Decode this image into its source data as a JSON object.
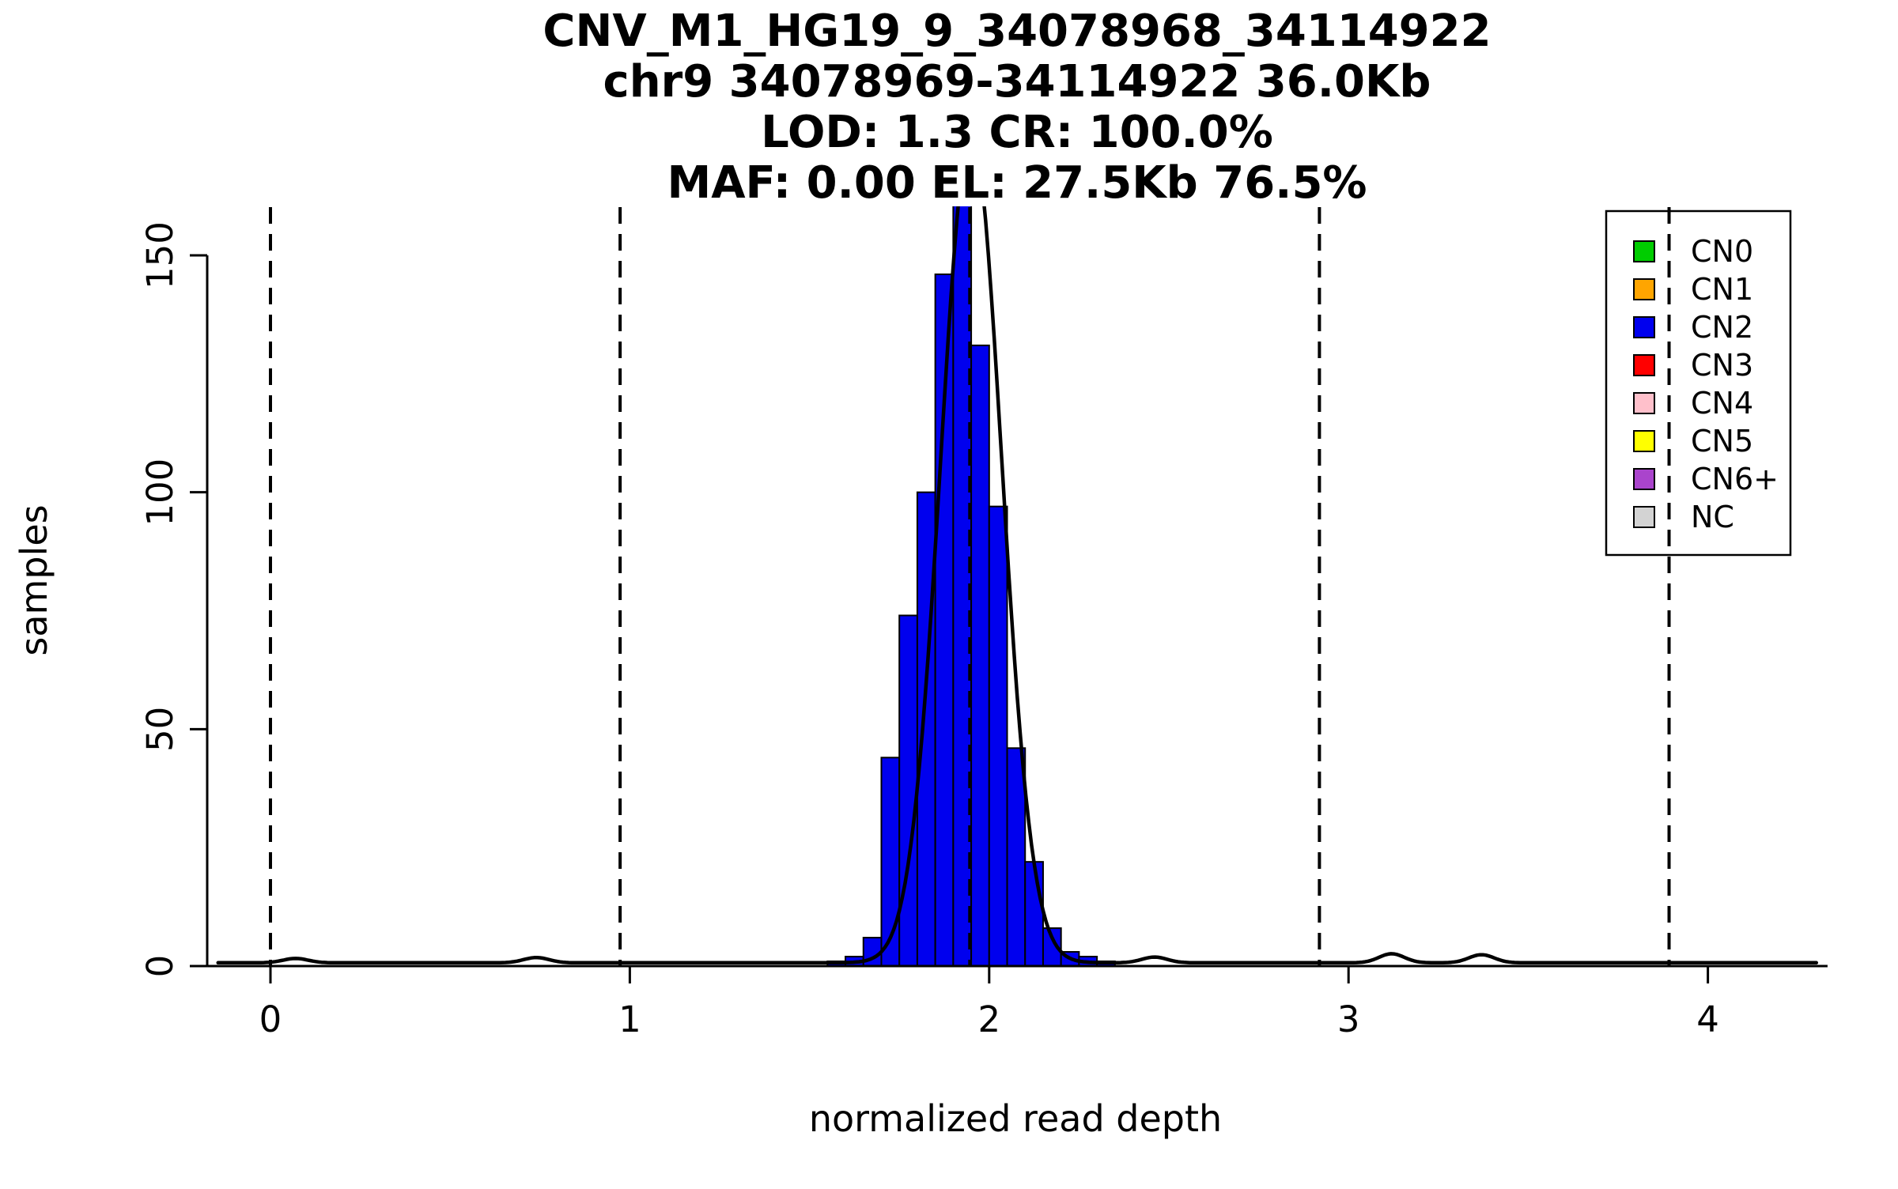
{
  "chart_data": {
    "type": "bar",
    "subtype": "histogram",
    "title_lines": [
      "CNV_M1_HG19_9_34078968_34114922",
      "chr9 34078969-34114922 36.0Kb",
      "LOD: 1.3 CR: 100.0%",
      "MAF: 0.00 EL: 27.5Kb 76.5%"
    ],
    "xlabel": "normalized read depth",
    "ylabel": "samples",
    "xlim": [
      -0.176,
      4.333
    ],
    "ylim": [
      0,
      160
    ],
    "x_ticks": [
      0,
      1,
      2,
      3,
      4
    ],
    "y_ticks": [
      0,
      50,
      100,
      150
    ],
    "grid": false,
    "legend_position": "top-right",
    "histogram": {
      "bin_start": 1.55,
      "bin_width": 0.05,
      "counts": [
        1,
        2,
        6,
        44,
        74,
        100,
        146,
        164,
        131,
        97,
        46,
        22,
        8,
        3,
        2,
        1
      ],
      "fill": "#0000EE",
      "stroke": "#000000"
    },
    "density_curve": {
      "color": "#000000",
      "mean": 1.95,
      "sd": 0.085,
      "peak": 175,
      "baseline": 0.7,
      "bumps": [
        {
          "x": 0.07,
          "h": 0.9
        },
        {
          "x": 0.74,
          "h": 1.1
        },
        {
          "x": 2.46,
          "h": 1.2
        },
        {
          "x": 3.12,
          "h": 1.9
        },
        {
          "x": 3.37,
          "h": 1.7
        }
      ]
    },
    "dashed_lines_x": [
      0.0,
      0.973,
      1.946,
      2.919,
      3.892
    ],
    "dashed_line_color": "#000000",
    "legend": {
      "items": [
        {
          "label": "CN0",
          "color": "#00CD00"
        },
        {
          "label": "CN1",
          "color": "#FFA500"
        },
        {
          "label": "CN2",
          "color": "#0000EE"
        },
        {
          "label": "CN3",
          "color": "#FF0000"
        },
        {
          "label": "CN4",
          "color": "#FFC0CB"
        },
        {
          "label": "CN5",
          "color": "#FFFF00"
        },
        {
          "label": "CN6+",
          "color": "#AA44CC"
        },
        {
          "label": "NC",
          "color": "#D3D3D3"
        }
      ]
    }
  }
}
